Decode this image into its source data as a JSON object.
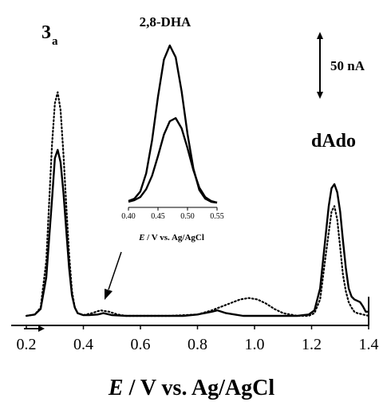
{
  "chart_data": [
    {
      "type": "line",
      "x_axis": {
        "label_italic": "E",
        "label_rest": " / V vs. Ag/AgCl",
        "range": [
          0.2,
          1.4
        ],
        "ticks": [
          "0.2",
          "0.4",
          "0.6",
          "0.8",
          "1.0",
          "1.2",
          "1.4"
        ],
        "tick_values": [
          0.2,
          0.4,
          0.6,
          0.8,
          1.0,
          1.2,
          1.4
        ]
      },
      "y_axis": {
        "visible": false,
        "range_nA": [
          0,
          190
        ]
      },
      "grid": false,
      "scale_bar": {
        "label": "50 nA",
        "value_nA": 50
      },
      "annotations": {
        "peak_3a_main": "3",
        "peak_3a_sub": "a",
        "peak_dado": "dAdo"
      },
      "series": [
        {
          "style": "solid",
          "x": [
            0.2,
            0.23,
            0.25,
            0.27,
            0.29,
            0.3,
            0.31,
            0.32,
            0.33,
            0.34,
            0.35,
            0.36,
            0.37,
            0.38,
            0.4,
            0.42,
            0.45,
            0.47,
            0.5,
            0.55,
            0.6,
            0.7,
            0.75,
            0.8,
            0.85,
            0.87,
            0.9,
            0.93,
            0.96,
            1.0,
            1.05,
            1.1,
            1.15,
            1.19,
            1.21,
            1.23,
            1.25,
            1.26,
            1.27,
            1.28,
            1.29,
            1.3,
            1.31,
            1.32,
            1.33,
            1.34,
            1.35,
            1.36,
            1.37,
            1.38,
            1.39,
            1.4
          ],
          "y": [
            0,
            1,
            5,
            28,
            85,
            115,
            121,
            112,
            90,
            62,
            35,
            15,
            6,
            2,
            0.5,
            0.5,
            1,
            2,
            0.5,
            0,
            0,
            0,
            0,
            1,
            3,
            4,
            2,
            1,
            0,
            0,
            0,
            0,
            0,
            1,
            4,
            20,
            60,
            80,
            93,
            96,
            90,
            76,
            55,
            35,
            20,
            14,
            12,
            11,
            10,
            7,
            3,
            3
          ]
        },
        {
          "style": "dotted",
          "x": [
            0.2,
            0.23,
            0.25,
            0.27,
            0.29,
            0.3,
            0.31,
            0.32,
            0.33,
            0.34,
            0.35,
            0.36,
            0.37,
            0.38,
            0.4,
            0.43,
            0.46,
            0.49,
            0.52,
            0.55,
            0.6,
            0.7,
            0.8,
            0.85,
            0.9,
            0.95,
            0.98,
            1.01,
            1.04,
            1.07,
            1.1,
            1.15,
            1.19,
            1.21,
            1.23,
            1.25,
            1.27,
            1.28,
            1.29,
            1.3,
            1.31,
            1.32,
            1.33,
            1.34,
            1.35,
            1.36,
            1.37,
            1.38,
            1.39,
            1.4
          ],
          "y": [
            0,
            1,
            6,
            40,
            125,
            155,
            163,
            150,
            118,
            80,
            45,
            18,
            6,
            2,
            0.5,
            2,
            4,
            3,
            1,
            0,
            0,
            0,
            1,
            4,
            8,
            12,
            13,
            12,
            9,
            5,
            2,
            0,
            0,
            2,
            12,
            45,
            76,
            80,
            70,
            50,
            30,
            18,
            10,
            6,
            3,
            2,
            1.5,
            1,
            0.5,
            0
          ]
        }
      ]
    },
    {
      "type": "line",
      "title": "2,8-DHA",
      "x_axis": {
        "label_italic": "E",
        "label_rest": " / V vs. Ag/AgCl",
        "range": [
          0.4,
          0.55
        ],
        "ticks": [
          "0.40",
          "0.45",
          "0.50",
          "0.55"
        ],
        "tick_values": [
          0.4,
          0.45,
          0.5,
          0.55
        ]
      },
      "y_axis": {
        "visible": false,
        "range": [
          0,
          210
        ]
      },
      "series": [
        {
          "style": "solid",
          "x": [
            0.4,
            0.41,
            0.42,
            0.43,
            0.44,
            0.45,
            0.46,
            0.47,
            0.48,
            0.49,
            0.5,
            0.51,
            0.52,
            0.53,
            0.54,
            0.55
          ],
          "y": [
            3,
            6,
            15,
            38,
            80,
            135,
            182,
            200,
            185,
            142,
            88,
            44,
            17,
            6,
            2,
            1
          ]
        },
        {
          "style": "solid",
          "x": [
            0.4,
            0.41,
            0.42,
            0.43,
            0.44,
            0.45,
            0.46,
            0.47,
            0.48,
            0.49,
            0.5,
            0.51,
            0.52,
            0.53,
            0.54,
            0.55
          ],
          "y": [
            2,
            4,
            8,
            18,
            35,
            60,
            87,
            104,
            108,
            95,
            70,
            42,
            20,
            8,
            3,
            1
          ]
        }
      ]
    }
  ]
}
